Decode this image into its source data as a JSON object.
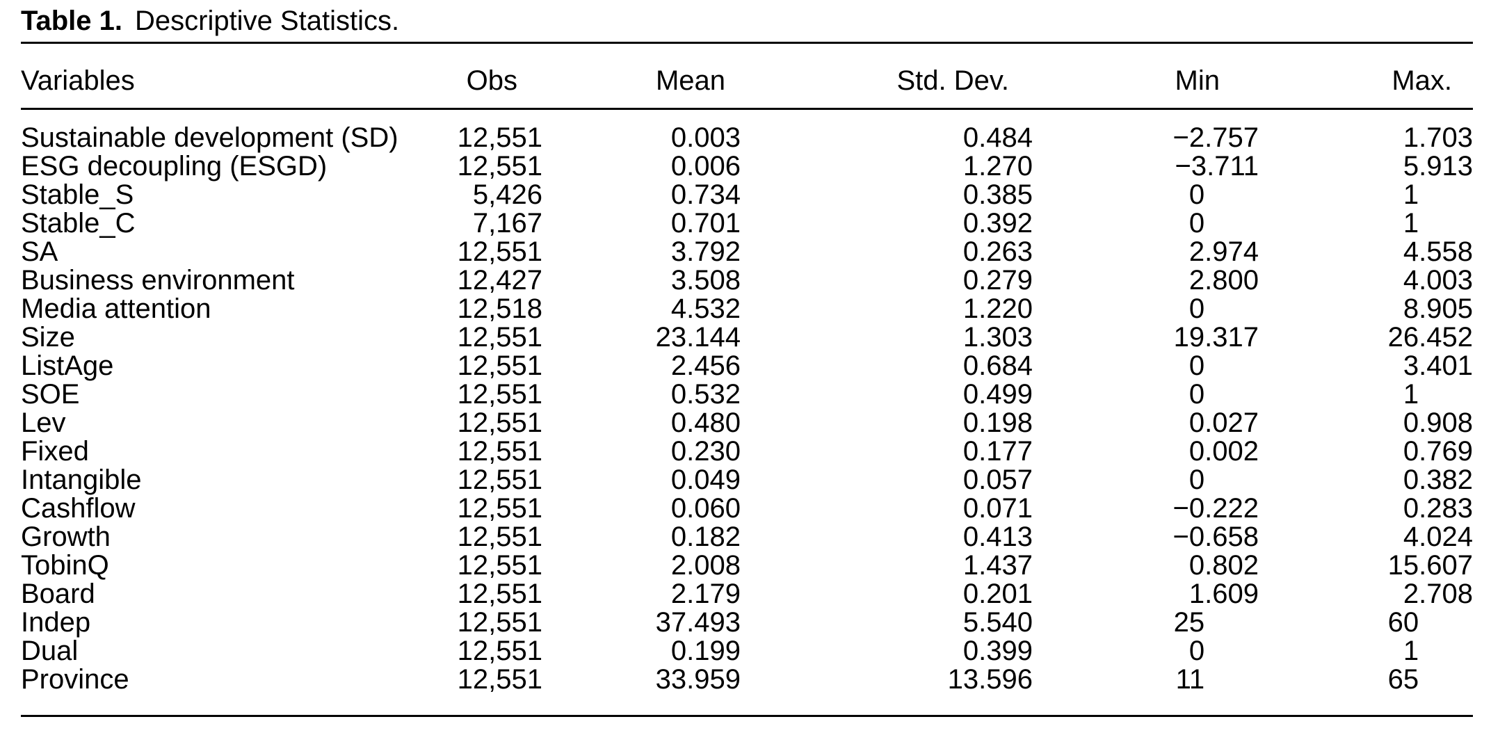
{
  "page": {
    "title_label": "Table 1.",
    "title_text": "Descriptive Statistics."
  },
  "table": {
    "columns": [
      "Variables",
      "Obs",
      "Mean",
      "Std. Dev.",
      "Min",
      "Max."
    ],
    "rows": [
      [
        "Sustainable development (SD)",
        "12,551",
        "0.003",
        "0.484",
        "−2.757",
        "1.703"
      ],
      [
        "ESG decoupling (ESGD)",
        "12,551",
        "0.006",
        "1.270",
        "−3.711",
        "5.913"
      ],
      [
        "Stable_S",
        "5,426",
        "0.734",
        "0.385",
        "0",
        "1"
      ],
      [
        "Stable_C",
        "7,167",
        "0.701",
        "0.392",
        "0",
        "1"
      ],
      [
        "SA",
        "12,551",
        "3.792",
        "0.263",
        "2.974",
        "4.558"
      ],
      [
        "Business environment",
        "12,427",
        "3.508",
        "0.279",
        "2.800",
        "4.003"
      ],
      [
        "Media attention",
        "12,518",
        "4.532",
        "1.220",
        "0",
        "8.905"
      ],
      [
        "Size",
        "12,551",
        "23.144",
        "1.303",
        "19.317",
        "26.452"
      ],
      [
        "ListAge",
        "12,551",
        "2.456",
        "0.684",
        "0",
        "3.401"
      ],
      [
        "SOE",
        "12,551",
        "0.532",
        "0.499",
        "0",
        "1"
      ],
      [
        "Lev",
        "12,551",
        "0.480",
        "0.198",
        "0.027",
        "0.908"
      ],
      [
        "Fixed",
        "12,551",
        "0.230",
        "0.177",
        "0.002",
        "0.769"
      ],
      [
        "Intangible",
        "12,551",
        "0.049",
        "0.057",
        "0",
        "0.382"
      ],
      [
        "Cashflow",
        "12,551",
        "0.060",
        "0.071",
        "−0.222",
        "0.283"
      ],
      [
        "Growth",
        "12,551",
        "0.182",
        "0.413",
        "−0.658",
        "4.024"
      ],
      [
        "TobinQ",
        "12,551",
        "2.008",
        "1.437",
        "0.802",
        "15.607"
      ],
      [
        "Board",
        "12,551",
        "2.179",
        "0.201",
        "1.609",
        "2.708"
      ],
      [
        "Indep",
        "12,551",
        "37.493",
        "5.540",
        "25",
        "60"
      ],
      [
        "Dual",
        "12,551",
        "0.199",
        "0.399",
        "0",
        "1"
      ],
      [
        "Province",
        "12,551",
        "33.959",
        "13.596",
        "11",
        "65"
      ]
    ]
  }
}
